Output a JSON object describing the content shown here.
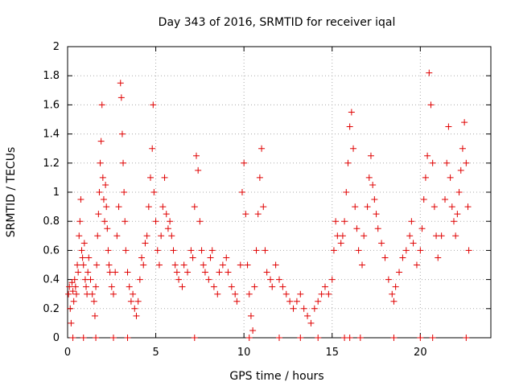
{
  "chart_data": {
    "type": "scatter",
    "title": "Day 343 of 2016, SRMTID for receiver iqal",
    "xlabel": "GPS time / hours",
    "ylabel": "SRMTID / TECUs",
    "xlim": [
      0,
      24
    ],
    "ylim": [
      0,
      2
    ],
    "xticks": [
      0,
      5,
      10,
      15,
      20
    ],
    "xtick_labels": [
      "0",
      "5",
      "10",
      "15",
      "20"
    ],
    "yticks": [
      0,
      0.2,
      0.4,
      0.6,
      0.8,
      1,
      1.2,
      1.4,
      1.6,
      1.8,
      2
    ],
    "ytick_labels": [
      "0",
      "0.2",
      "0.4",
      "0.6",
      "0.8",
      "1",
      "1.2",
      "1.4",
      "1.6",
      "1.8",
      "2"
    ],
    "grid": true,
    "marker": "+",
    "color": "#e00000",
    "series": [
      {
        "name": "SRMTID",
        "points": [
          [
            0.05,
            0.3
          ],
          [
            0.1,
            0.35
          ],
          [
            0.15,
            0.2
          ],
          [
            0.2,
            0.1
          ],
          [
            0.25,
            0.38
          ],
          [
            0.3,
            0.32
          ],
          [
            0.35,
            0.25
          ],
          [
            0.4,
            0.4
          ],
          [
            0.45,
            0.35
          ],
          [
            0.5,
            0.3
          ],
          [
            0.55,
            0.5
          ],
          [
            0.6,
            0.45
          ],
          [
            0.65,
            0.7
          ],
          [
            0.7,
            0.8
          ],
          [
            0.75,
            0.95
          ],
          [
            0.8,
            0.6
          ],
          [
            0.85,
            0.55
          ],
          [
            0.9,
            0.5
          ],
          [
            0.95,
            0.65
          ],
          [
            1.0,
            0.4
          ],
          [
            1.05,
            0.35
          ],
          [
            1.1,
            0.3
          ],
          [
            1.15,
            0.45
          ],
          [
            1.2,
            0.55
          ],
          [
            1.3,
            0.4
          ],
          [
            1.4,
            0.3
          ],
          [
            1.5,
            0.25
          ],
          [
            1.55,
            0.15
          ],
          [
            1.6,
            0.35
          ],
          [
            1.65,
            0.5
          ],
          [
            1.7,
            0.7
          ],
          [
            1.75,
            0.85
          ],
          [
            1.8,
            1.0
          ],
          [
            1.85,
            1.2
          ],
          [
            1.9,
            1.35
          ],
          [
            1.95,
            1.6
          ],
          [
            2.0,
            1.1
          ],
          [
            2.05,
            0.95
          ],
          [
            2.1,
            0.8
          ],
          [
            2.15,
            1.05
          ],
          [
            2.2,
            0.9
          ],
          [
            2.25,
            0.75
          ],
          [
            2.3,
            0.6
          ],
          [
            2.35,
            0.5
          ],
          [
            2.4,
            0.45
          ],
          [
            2.5,
            0.35
          ],
          [
            2.6,
            0.3
          ],
          [
            2.7,
            0.45
          ],
          [
            2.8,
            0.7
          ],
          [
            2.9,
            0.9
          ],
          [
            3.0,
            1.75
          ],
          [
            3.05,
            1.65
          ],
          [
            3.1,
            1.4
          ],
          [
            3.15,
            1.2
          ],
          [
            3.2,
            1.0
          ],
          [
            3.25,
            0.8
          ],
          [
            3.3,
            0.6
          ],
          [
            3.4,
            0.45
          ],
          [
            3.5,
            0.35
          ],
          [
            3.6,
            0.25
          ],
          [
            3.7,
            0.3
          ],
          [
            3.8,
            0.2
          ],
          [
            3.9,
            0.15
          ],
          [
            4.0,
            0.25
          ],
          [
            4.1,
            0.4
          ],
          [
            4.2,
            0.55
          ],
          [
            4.3,
            0.5
          ],
          [
            4.4,
            0.65
          ],
          [
            4.5,
            0.7
          ],
          [
            4.6,
            0.9
          ],
          [
            4.7,
            1.1
          ],
          [
            4.8,
            1.3
          ],
          [
            4.85,
            1.6
          ],
          [
            4.9,
            1.0
          ],
          [
            5.0,
            0.8
          ],
          [
            5.1,
            0.6
          ],
          [
            5.2,
            0.5
          ],
          [
            5.3,
            0.7
          ],
          [
            5.4,
            0.9
          ],
          [
            5.5,
            1.1
          ],
          [
            5.6,
            0.85
          ],
          [
            5.7,
            0.75
          ],
          [
            5.8,
            0.8
          ],
          [
            5.9,
            0.7
          ],
          [
            6.0,
            0.6
          ],
          [
            6.1,
            0.5
          ],
          [
            6.2,
            0.45
          ],
          [
            6.3,
            0.4
          ],
          [
            6.5,
            0.35
          ],
          [
            6.6,
            0.5
          ],
          [
            6.8,
            0.45
          ],
          [
            7.0,
            0.6
          ],
          [
            7.1,
            0.55
          ],
          [
            7.2,
            0.9
          ],
          [
            7.3,
            1.25
          ],
          [
            7.4,
            1.15
          ],
          [
            7.5,
            0.8
          ],
          [
            7.6,
            0.6
          ],
          [
            7.7,
            0.5
          ],
          [
            7.8,
            0.45
          ],
          [
            8.0,
            0.4
          ],
          [
            8.1,
            0.55
          ],
          [
            8.2,
            0.6
          ],
          [
            8.3,
            0.35
          ],
          [
            8.5,
            0.3
          ],
          [
            8.6,
            0.45
          ],
          [
            8.8,
            0.5
          ],
          [
            9.0,
            0.55
          ],
          [
            9.1,
            0.45
          ],
          [
            9.3,
            0.35
          ],
          [
            9.5,
            0.3
          ],
          [
            9.6,
            0.25
          ],
          [
            9.8,
            0.5
          ],
          [
            9.9,
            1.0
          ],
          [
            10.0,
            1.2
          ],
          [
            10.1,
            0.85
          ],
          [
            10.2,
            0.5
          ],
          [
            10.3,
            0.3
          ],
          [
            10.4,
            0.15
          ],
          [
            10.5,
            0.05
          ],
          [
            10.6,
            0.35
          ],
          [
            10.7,
            0.6
          ],
          [
            10.8,
            0.85
          ],
          [
            10.9,
            1.1
          ],
          [
            11.0,
            1.3
          ],
          [
            11.1,
            0.9
          ],
          [
            11.2,
            0.6
          ],
          [
            11.3,
            0.45
          ],
          [
            11.5,
            0.4
          ],
          [
            11.6,
            0.35
          ],
          [
            11.8,
            0.5
          ],
          [
            12.0,
            0.4
          ],
          [
            12.2,
            0.35
          ],
          [
            12.4,
            0.3
          ],
          [
            12.6,
            0.25
          ],
          [
            12.8,
            0.2
          ],
          [
            13.0,
            0.25
          ],
          [
            13.2,
            0.3
          ],
          [
            13.4,
            0.2
          ],
          [
            13.6,
            0.15
          ],
          [
            13.8,
            0.1
          ],
          [
            14.0,
            0.2
          ],
          [
            14.2,
            0.25
          ],
          [
            14.4,
            0.3
          ],
          [
            14.6,
            0.35
          ],
          [
            14.8,
            0.3
          ],
          [
            15.0,
            0.4
          ],
          [
            15.1,
            0.6
          ],
          [
            15.2,
            0.8
          ],
          [
            15.3,
            0.7
          ],
          [
            15.5,
            0.65
          ],
          [
            15.6,
            0.7
          ],
          [
            15.7,
            0.8
          ],
          [
            15.8,
            1.0
          ],
          [
            15.9,
            1.2
          ],
          [
            16.0,
            1.45
          ],
          [
            16.1,
            1.55
          ],
          [
            16.2,
            1.3
          ],
          [
            16.3,
            0.9
          ],
          [
            16.4,
            0.75
          ],
          [
            16.5,
            0.6
          ],
          [
            16.7,
            0.5
          ],
          [
            16.8,
            0.7
          ],
          [
            17.0,
            0.9
          ],
          [
            17.1,
            1.1
          ],
          [
            17.2,
            1.25
          ],
          [
            17.3,
            1.05
          ],
          [
            17.4,
            0.95
          ],
          [
            17.5,
            0.85
          ],
          [
            17.6,
            0.75
          ],
          [
            17.8,
            0.65
          ],
          [
            18.0,
            0.55
          ],
          [
            18.2,
            0.4
          ],
          [
            18.4,
            0.3
          ],
          [
            18.5,
            0.25
          ],
          [
            18.6,
            0.35
          ],
          [
            18.8,
            0.45
          ],
          [
            19.0,
            0.55
          ],
          [
            19.2,
            0.6
          ],
          [
            19.4,
            0.7
          ],
          [
            19.5,
            0.8
          ],
          [
            19.6,
            0.65
          ],
          [
            19.8,
            0.5
          ],
          [
            20.0,
            0.6
          ],
          [
            20.1,
            0.75
          ],
          [
            20.2,
            0.95
          ],
          [
            20.3,
            1.1
          ],
          [
            20.4,
            1.25
          ],
          [
            20.5,
            1.82
          ],
          [
            20.6,
            1.6
          ],
          [
            20.7,
            1.2
          ],
          [
            20.8,
            0.9
          ],
          [
            20.9,
            0.7
          ],
          [
            21.0,
            0.55
          ],
          [
            21.2,
            0.7
          ],
          [
            21.4,
            0.95
          ],
          [
            21.5,
            1.2
          ],
          [
            21.6,
            1.45
          ],
          [
            21.7,
            1.1
          ],
          [
            21.8,
            0.9
          ],
          [
            21.9,
            0.8
          ],
          [
            22.0,
            0.7
          ],
          [
            22.1,
            0.85
          ],
          [
            22.2,
            1.0
          ],
          [
            22.3,
            1.15
          ],
          [
            22.4,
            1.3
          ],
          [
            22.5,
            1.48
          ],
          [
            22.6,
            1.2
          ],
          [
            22.7,
            0.9
          ],
          [
            22.75,
            0.6
          ],
          [
            0.3,
            0.0
          ],
          [
            0.9,
            0.0
          ],
          [
            1.6,
            0.0
          ],
          [
            2.6,
            0.0
          ],
          [
            3.4,
            0.0
          ],
          [
            7.2,
            0.0
          ],
          [
            10.3,
            0.0
          ],
          [
            12.0,
            0.0
          ],
          [
            13.2,
            0.0
          ],
          [
            14.2,
            0.0
          ],
          [
            15.7,
            0.0
          ],
          [
            16.0,
            0.0
          ],
          [
            16.6,
            0.0
          ],
          [
            18.5,
            0.0
          ],
          [
            20.0,
            0.0
          ],
          [
            20.7,
            0.0
          ],
          [
            22.6,
            0.0
          ]
        ]
      }
    ]
  }
}
